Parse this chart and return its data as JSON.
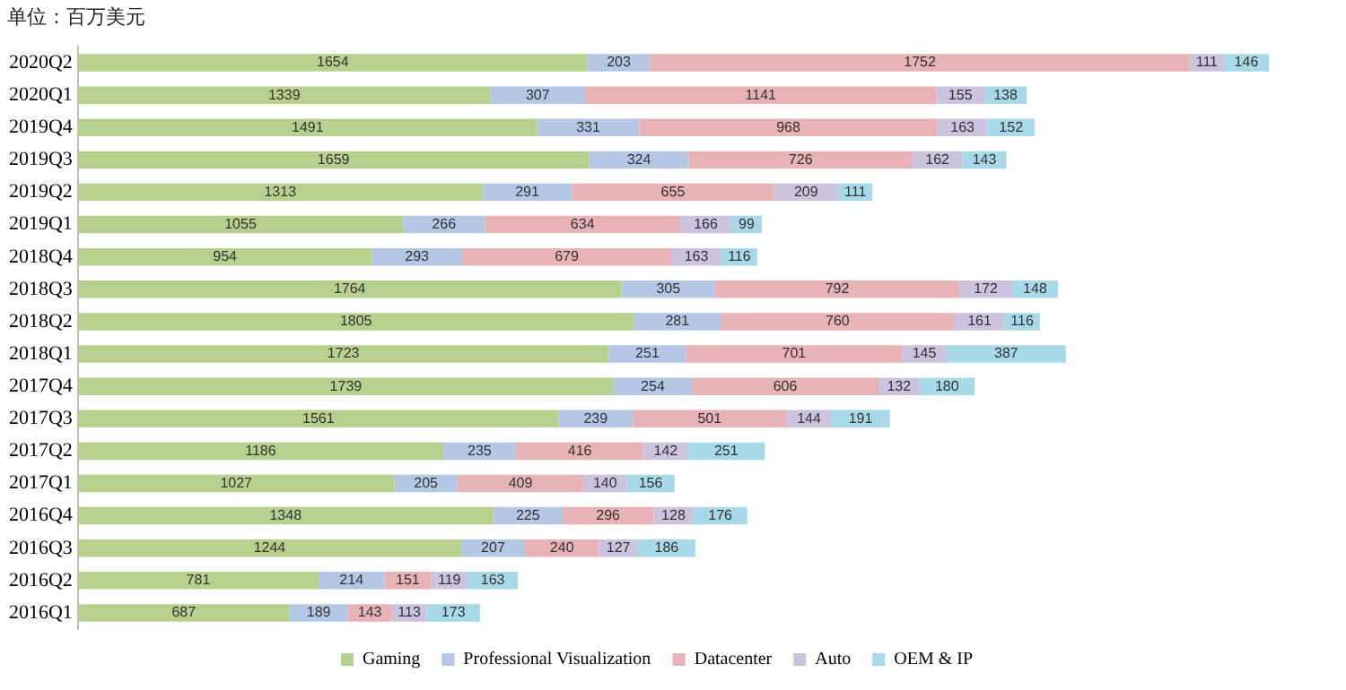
{
  "chart_data": {
    "type": "bar",
    "orientation": "horizontal",
    "stacked": true,
    "data_labels": true,
    "legend": "bottom",
    "grid": false,
    "tick_labels": "y",
    "annotations": [
      "单位：百万美元"
    ],
    "categories": [
      "2020Q2",
      "2020Q1",
      "2019Q4",
      "2019Q3",
      "2019Q2",
      "2019Q1",
      "2018Q4",
      "2018Q3",
      "2018Q2",
      "2018Q1",
      "2017Q4",
      "2017Q3",
      "2017Q2",
      "2017Q1",
      "2016Q4",
      "2016Q3",
      "2016Q2",
      "2016Q1"
    ],
    "series": [
      {
        "name": "Gaming",
        "color": "#b8d08e",
        "values": [
          1654,
          1339,
          1491,
          1659,
          1313,
          1055,
          954,
          1764,
          1805,
          1723,
          1739,
          1561,
          1186,
          1027,
          1348,
          1244,
          781,
          687
        ]
      },
      {
        "name": "Professional Visualization",
        "color": "#b4c8e6",
        "values": [
          203,
          307,
          331,
          324,
          291,
          266,
          293,
          305,
          281,
          251,
          254,
          239,
          235,
          205,
          225,
          207,
          214,
          189
        ]
      },
      {
        "name": "Datacenter",
        "color": "#e8b3b6",
        "values": [
          1752,
          1141,
          968,
          726,
          655,
          634,
          679,
          792,
          760,
          701,
          606,
          501,
          416,
          409,
          296,
          240,
          151,
          143
        ]
      },
      {
        "name": "Auto",
        "color": "#ccc3df",
        "values": [
          111,
          155,
          163,
          162,
          209,
          166,
          163,
          172,
          161,
          145,
          132,
          144,
          142,
          140,
          128,
          127,
          119,
          113
        ]
      },
      {
        "name": "OEM & IP",
        "color": "#a8d9e8",
        "values": [
          146,
          138,
          152,
          143,
          111,
          99,
          116,
          148,
          116,
          387,
          180,
          191,
          251,
          156,
          176,
          186,
          163,
          173
        ]
      }
    ]
  }
}
